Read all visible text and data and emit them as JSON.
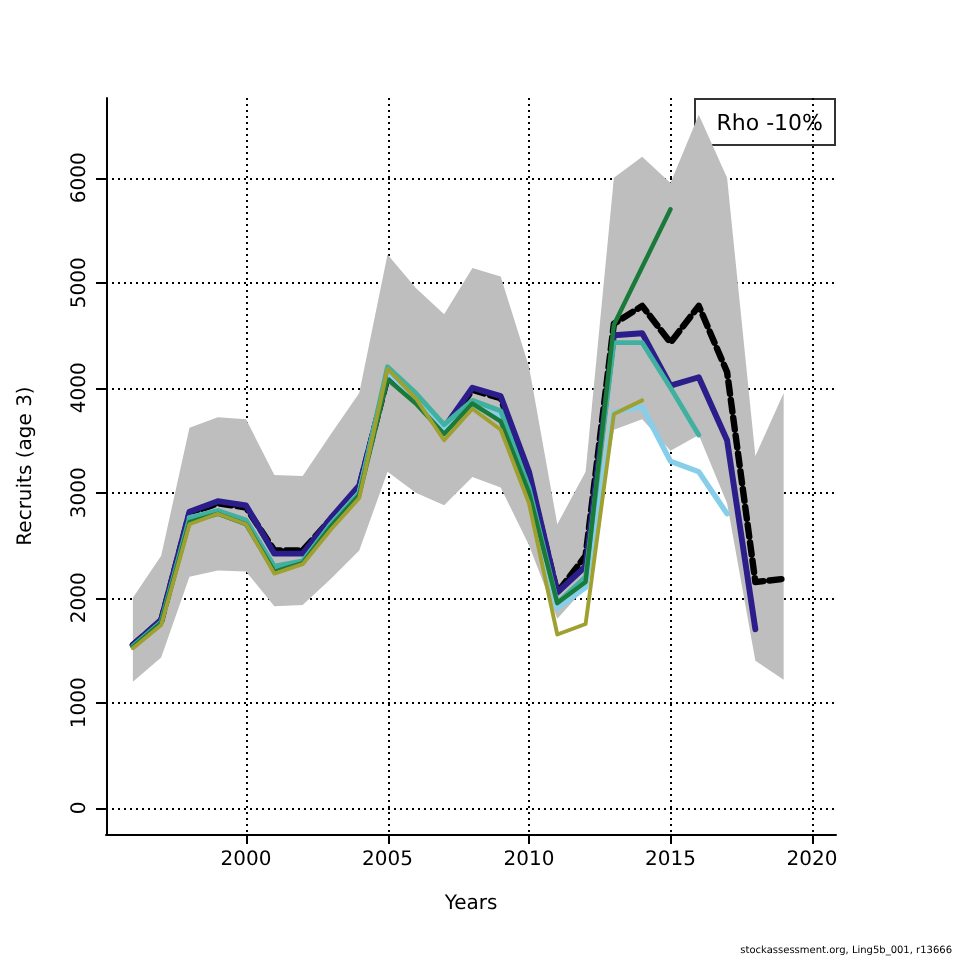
{
  "chart_data": {
    "type": "line",
    "xlabel": "Years",
    "ylabel": "Recruits (age 3)",
    "x": [
      1996,
      1997,
      1998,
      1999,
      2000,
      2001,
      2002,
      2003,
      2004,
      2005,
      2006,
      2007,
      2008,
      2009,
      2010,
      2011,
      2012,
      2013,
      2014,
      2015,
      2016,
      2017,
      2018,
      2019
    ],
    "series": [
      {
        "color": "#000000",
        "line_style": "dashed",
        "values": [
          1550,
          1780,
          2800,
          2900,
          2860,
          2450,
          2450,
          2750,
          3050,
          4100,
          3900,
          3600,
          3980,
          3900,
          3150,
          2050,
          2400,
          4610,
          4780,
          4430,
          4780,
          4150,
          2150,
          2180
        ],
        "lower": [
          1200,
          1430,
          2200,
          2260,
          2250,
          1920,
          1930,
          2180,
          2450,
          3200,
          3000,
          2880,
          3150,
          3050,
          2500,
          1800,
          2100,
          3600,
          3700,
          3400,
          3550,
          2900,
          1400,
          1220
        ],
        "upper": [
          2000,
          2400,
          3620,
          3720,
          3700,
          3170,
          3160,
          3560,
          3950,
          5270,
          4950,
          4700,
          5140,
          5060,
          4200,
          2700,
          3200,
          6000,
          6200,
          5950,
          6600,
          6000,
          3350,
          3950
        ]
      },
      {
        "color": "#2b1d8a",
        "values": [
          1550,
          1790,
          2820,
          2920,
          2880,
          2420,
          2420,
          2760,
          3070,
          4100,
          3900,
          3620,
          4000,
          3920,
          3200,
          2050,
          2300,
          4500,
          4520,
          4020,
          4100,
          3500,
          1700,
          null
        ]
      },
      {
        "color": "#87ceeb",
        "values": [
          null,
          null,
          2760,
          2830,
          2720,
          2290,
          2340,
          2700,
          3000,
          4150,
          3900,
          3600,
          3830,
          3720,
          3000,
          1900,
          2100,
          3770,
          3820,
          3300,
          3200,
          2800,
          null,
          null
        ]
      },
      {
        "color": "#40b0a0",
        "values": [
          1540,
          1770,
          2760,
          2830,
          2740,
          2300,
          2350,
          2700,
          3000,
          4200,
          3950,
          3650,
          3880,
          3780,
          3050,
          1950,
          2200,
          4430,
          4430,
          4000,
          3550,
          null,
          null,
          null
        ]
      },
      {
        "color": "#1a7a3a",
        "values": [
          1530,
          1760,
          2720,
          2800,
          2700,
          2250,
          2330,
          2680,
          2980,
          4080,
          3850,
          3560,
          3850,
          3680,
          3000,
          1950,
          2150,
          4600,
          5150,
          5700,
          null,
          null,
          null,
          null
        ]
      },
      {
        "color": "#a0a030",
        "values": [
          1520,
          1740,
          2700,
          2800,
          2700,
          2230,
          2320,
          2650,
          2950,
          4180,
          3900,
          3500,
          3800,
          3600,
          2900,
          1650,
          1750,
          3750,
          3880,
          null,
          null,
          null,
          null,
          null
        ]
      }
    ],
    "xlim": [
      1995.05,
      2020.85
    ],
    "xticks": [
      2000,
      2005,
      2010,
      2015,
      2020
    ],
    "ylim": [
      -250,
      6760
    ],
    "yticks": [
      0,
      1000,
      2000,
      3000,
      4000,
      5000,
      6000
    ],
    "grid": true,
    "line_style": "solid",
    "marker": "none",
    "annotations": [
      "Rho -10%",
      "stockassessment.org, Ling5b_001, r13666"
    ]
  }
}
